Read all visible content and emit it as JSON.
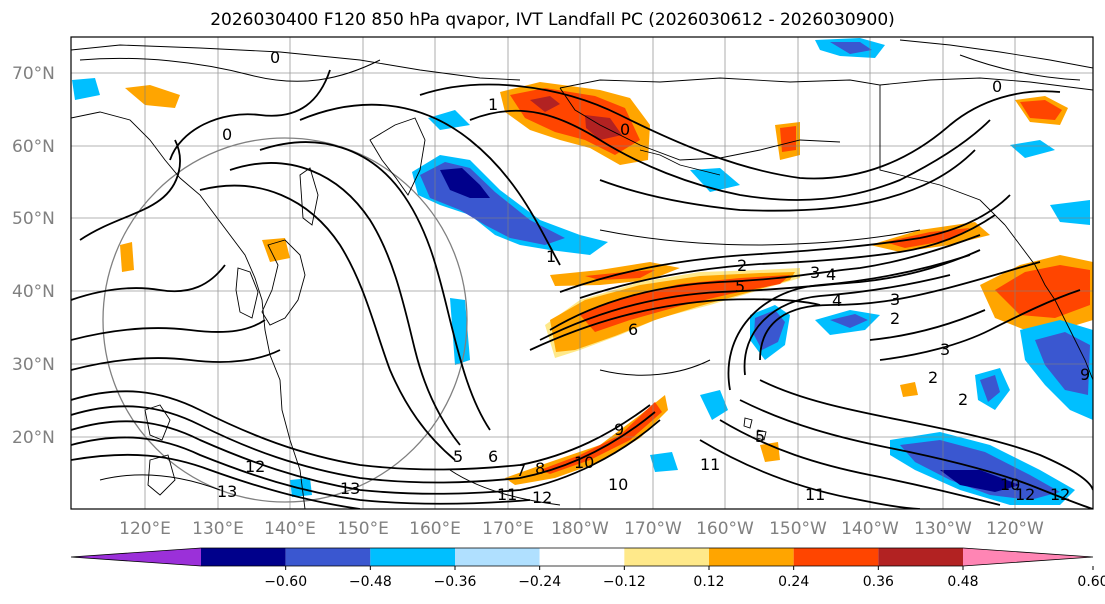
{
  "title": "2026030400 F120 850 hPa qvapor, IVT Landfall PC (2026030612 - 2026030900)",
  "lat_labels": [
    "70°N",
    "60°N",
    "50°N",
    "40°N",
    "30°N",
    "20°N"
  ],
  "lon_labels": [
    "120°E",
    "130°E",
    "140°E",
    "150°E",
    "160°E",
    "170°E",
    "180°W",
    "170°W",
    "160°W",
    "150°W",
    "140°W",
    "130°W",
    "120°W"
  ],
  "colorbar": {
    "colors": [
      "#9b30d9",
      "#00008b",
      "#3a57d0",
      "#00bfff",
      "#b0e0ff",
      "#ffffff",
      "#ffe98a",
      "#ffa500",
      "#ff4500",
      "#b22222",
      "#ff85b4"
    ],
    "tick_labels": [
      "−0.60",
      "−0.48",
      "−0.36",
      "−0.24",
      "−0.12",
      "0.12",
      "0.24",
      "0.36",
      "0.48",
      "0.60"
    ]
  },
  "contour_labels": [
    "0",
    "0",
    "0",
    "0",
    "1",
    "1",
    "2",
    "3",
    "4",
    "3",
    "2",
    "4",
    "5",
    "6",
    "2",
    "3",
    "2",
    "5",
    "6",
    "7",
    "8",
    "9",
    "10",
    "11",
    "12",
    "13",
    "12",
    "13",
    "5",
    "11",
    "12",
    "10",
    "11",
    "10",
    "12",
    "9"
  ],
  "map_colors": {
    "pos_light": "#ffe98a",
    "pos_mid": "#ffa500",
    "pos_strong": "#ff4500",
    "pos_max": "#b22222",
    "neg_light": "#b0e0ff",
    "neg_mid": "#00bfff",
    "neg_strong": "#3a57d0",
    "neg_max": "#00008b"
  }
}
